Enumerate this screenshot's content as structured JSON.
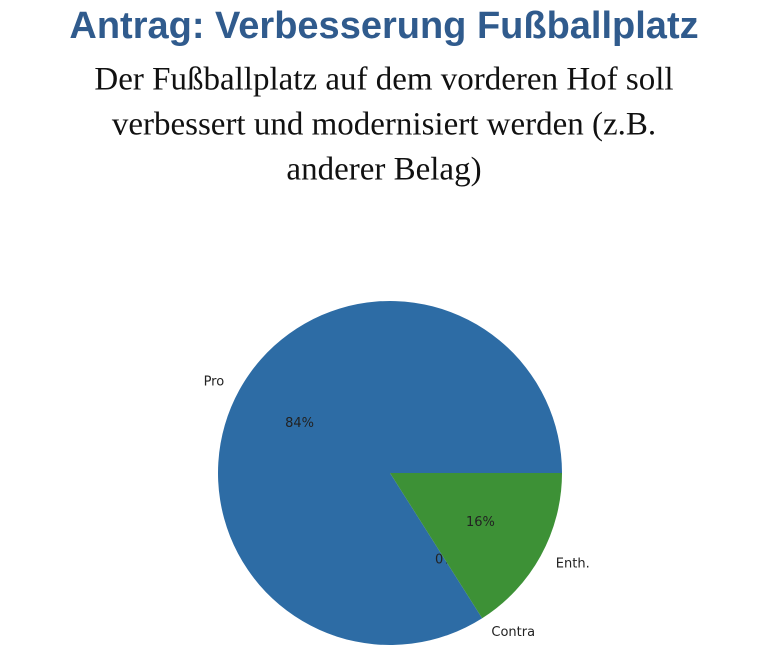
{
  "chart_data": {
    "type": "pie",
    "title": "Antrag: Verbesserung Fußballplatz",
    "subtitle": [
      "Der Fußballplatz auf dem vorderen Hof soll",
      "verbessert und modernisiert werden (z.B.",
      "anderer Belag)"
    ],
    "categories": [
      "Pro",
      "Contra",
      "Enth."
    ],
    "values": [
      84,
      0,
      16
    ],
    "value_labels": [
      "84%",
      "0%",
      "16%"
    ],
    "colors": [
      "#2d6ca5",
      "#e07b22",
      "#3d9136"
    ]
  }
}
